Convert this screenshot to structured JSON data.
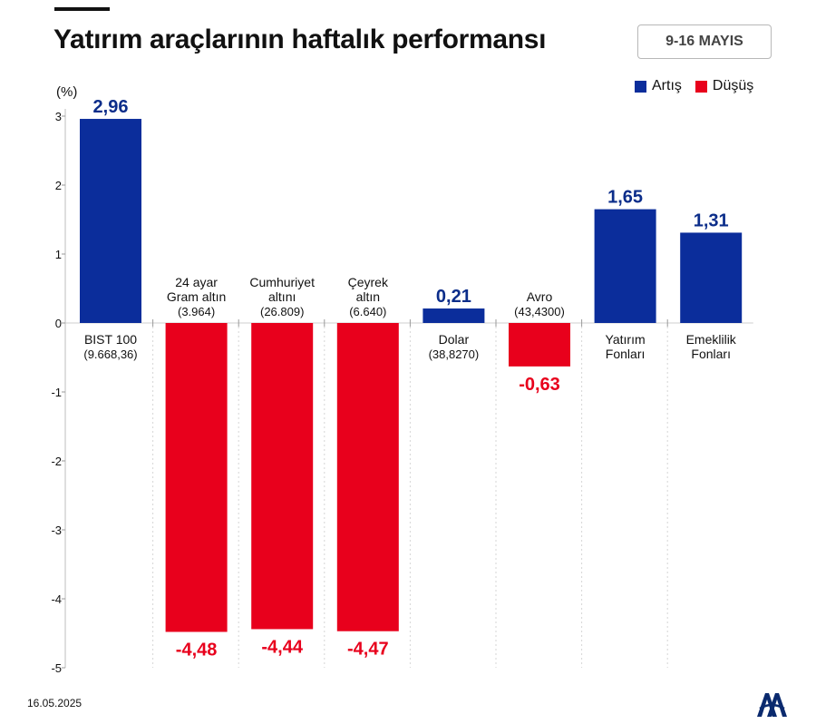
{
  "title": "Yatırım araçlarının haftalık performansı",
  "date_range": "9-16 MAYIS",
  "footer_date": "16.05.2025",
  "source_logo": "AA",
  "colors": {
    "increase": "#0b2d9b",
    "decrease": "#e8001c",
    "increase_label": "#0b2d8a",
    "decrease_label": "#e8001c"
  },
  "legend": [
    {
      "label": "Artış",
      "color": "#0b2d9b"
    },
    {
      "label": "Düşüş",
      "color": "#e8001c"
    }
  ],
  "chart_data": {
    "type": "bar",
    "title": "Yatırım araçlarının haftalık performansı",
    "ylabel": "(%)",
    "xlabel": "",
    "ylim": [
      -5,
      3
    ],
    "yticks": [
      3,
      2,
      1,
      0,
      -1,
      -2,
      -3,
      -4,
      -5
    ],
    "gridlines": "dotted-vertical-separators",
    "legend_position": "top-right",
    "categories": [
      {
        "name_lines": [
          "BIST 100"
        ],
        "sub": "(9.668,36)",
        "value": 2.96,
        "value_label": "2,96"
      },
      {
        "name_lines": [
          "24 ayar",
          "Gram altın"
        ],
        "sub": "(3.964)",
        "value": -4.48,
        "value_label": "-4,48"
      },
      {
        "name_lines": [
          "Cumhuriyet",
          "altını"
        ],
        "sub": "(26.809)",
        "value": -4.44,
        "value_label": "-4,44"
      },
      {
        "name_lines": [
          "Çeyrek",
          "altın"
        ],
        "sub": "(6.640)",
        "value": -4.47,
        "value_label": "-4,47"
      },
      {
        "name_lines": [
          "Dolar"
        ],
        "sub": "(38,8270)",
        "value": 0.21,
        "value_label": "0,21"
      },
      {
        "name_lines": [
          "Avro"
        ],
        "sub": "(43,4300)",
        "value": -0.63,
        "value_label": "-0,63"
      },
      {
        "name_lines": [
          "Yatırım",
          "Fonları"
        ],
        "sub": "",
        "value": 1.65,
        "value_label": "1,65"
      },
      {
        "name_lines": [
          "Emeklilik",
          "Fonları"
        ],
        "sub": "",
        "value": 1.31,
        "value_label": "1,31"
      }
    ]
  }
}
